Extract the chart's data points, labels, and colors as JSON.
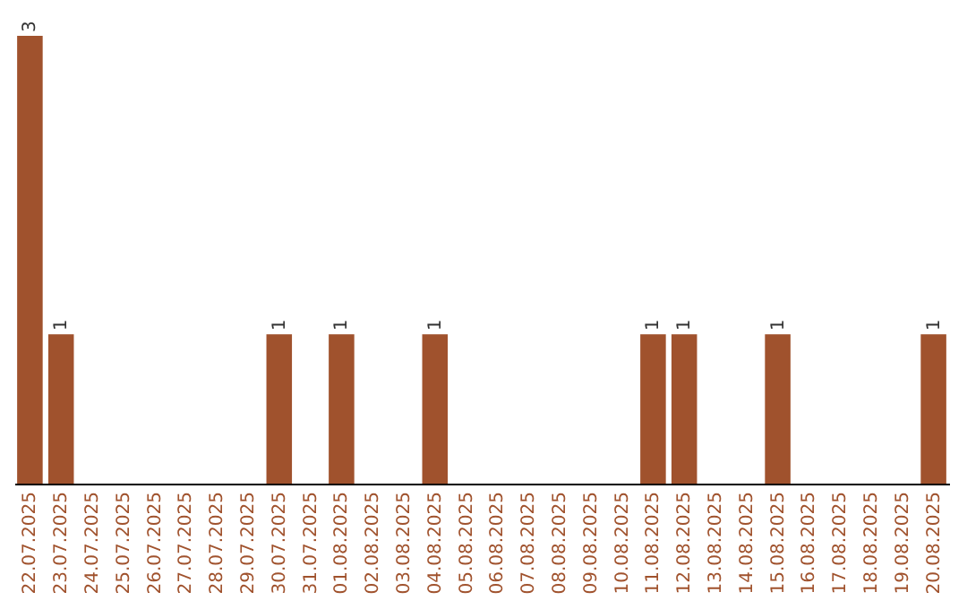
{
  "chart_data": {
    "type": "bar",
    "categories": [
      "22.07.2025",
      "23.07.2025",
      "24.07.2025",
      "25.07.2025",
      "26.07.2025",
      "27.07.2025",
      "28.07.2025",
      "29.07.2025",
      "30.07.2025",
      "31.07.2025",
      "01.08.2025",
      "02.08.2025",
      "03.08.2025",
      "04.08.2025",
      "05.08.2025",
      "06.08.2025",
      "07.08.2025",
      "08.08.2025",
      "09.08.2025",
      "10.08.2025",
      "11.08.2025",
      "12.08.2025",
      "13.08.2025",
      "14.08.2025",
      "15.08.2025",
      "16.08.2025",
      "17.08.2025",
      "18.08.2025",
      "19.08.2025",
      "20.08.2025"
    ],
    "values": [
      3,
      1,
      0,
      0,
      0,
      0,
      0,
      0,
      1,
      0,
      1,
      0,
      0,
      1,
      0,
      0,
      0,
      0,
      0,
      0,
      1,
      1,
      0,
      0,
      1,
      0,
      0,
      0,
      0,
      1
    ],
    "value_labels": [
      "3",
      "1",
      null,
      null,
      null,
      null,
      null,
      null,
      "1",
      null,
      "1",
      null,
      null,
      "1",
      null,
      null,
      null,
      null,
      null,
      null,
      "1",
      "1",
      null,
      null,
      "1",
      null,
      null,
      null,
      null,
      "1"
    ],
    "color": "#a0522d",
    "tick_labels": "x"
  }
}
